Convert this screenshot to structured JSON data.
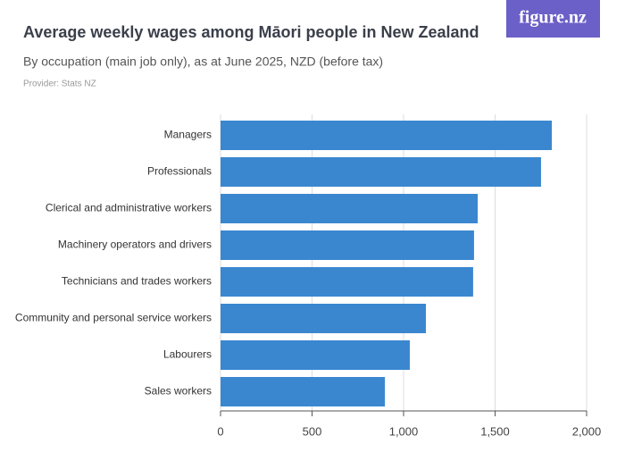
{
  "chart_data": {
    "type": "barh",
    "title": "Average weekly wages among Māori people in New Zealand",
    "subtitle": "By occupation (main job only), as at June 2025, NZD (before tax)",
    "provider": "Provider: Stats NZ",
    "logo": "figure.nz",
    "categories": [
      "Managers",
      "Professionals",
      "Clerical and administrative workers",
      "Machinery operators and drivers",
      "Technicians and trades workers",
      "Community and personal service workers",
      "Labourers",
      "Sales workers"
    ],
    "values": [
      1810,
      1751,
      1405,
      1385,
      1380,
      1122,
      1034,
      898
    ],
    "color": "#3a87d0",
    "xlim": [
      0,
      2000
    ],
    "xticks": [
      0,
      500,
      {
        "value": 1000,
        "label": "1,000"
      },
      {
        "value": 1500,
        "label": "1,500"
      },
      {
        "value": 2000,
        "label": "2,000"
      }
    ],
    "grid": true
  }
}
